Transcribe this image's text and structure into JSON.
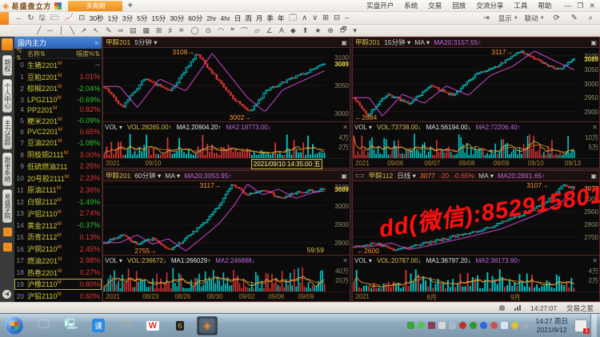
{
  "titlebar": {
    "app_title": "易盛盘立方",
    "window_tab": "多周期",
    "new_tab": "+",
    "menus": [
      "实盘开户",
      "系统",
      "交易",
      "回放",
      "交流分享",
      "工具",
      "帮助"
    ],
    "window_buttons": {
      "minimize": "—",
      "restore": "❐",
      "close": "✕"
    }
  },
  "toolbar": {
    "nav_icons": [
      "←",
      "↻",
      "🖫",
      "🗁",
      "📈",
      "⊡"
    ],
    "periods": [
      "30秒",
      "1分",
      "3分",
      "5分",
      "15分",
      "30分",
      "60分",
      "2hr",
      "4hr",
      "日",
      "周",
      "月",
      "季",
      "年"
    ],
    "extra_icons": [
      "🗔",
      "∧",
      "∨",
      "⊞",
      "⊟",
      "–"
    ],
    "right": {
      "jump": "⇥",
      "display": "显示",
      "linkage": "联动",
      "refresh": "⟳",
      "edit": "✎",
      "find": "⌕"
    }
  },
  "drawbar": {
    "tools": [
      "╱",
      "─",
      "│",
      "╲",
      "↗",
      "↖",
      "✎",
      "═",
      "▤",
      "▦",
      "⊞",
      "♯",
      "✳",
      "◯",
      "⊙",
      "◠",
      "❝",
      "⌒",
      "▱",
      "∠",
      "A",
      "◆",
      "⬆",
      "★",
      "⊕",
      "🗗",
      "▾"
    ]
  },
  "tabstrip": {
    "tabs": [
      "期权",
      "个人中心",
      "主力追踪",
      "跟单系统",
      "易盛学院"
    ],
    "expander": "›",
    "collapse": "◀"
  },
  "sidebar": {
    "header": "国内主力",
    "header_arrow": "»",
    "columns": [
      "号⇅",
      "名称⇅",
      "幅度%⇅"
    ],
    "selected_index": 19,
    "rows": [
      {
        "no": "0",
        "name": "生猪2201",
        "m": true,
        "chg": "--",
        "dir": "flat"
      },
      {
        "no": "1",
        "name": "豆粕2201",
        "m": true,
        "chg": "1.01%",
        "dir": "up"
      },
      {
        "no": "2",
        "name": "棕榈2201",
        "m": true,
        "chg": "-2.04%",
        "dir": "down"
      },
      {
        "no": "3",
        "name": "LPG2110",
        "m": true,
        "chg": "-0.69%",
        "dir": "down"
      },
      {
        "no": "4",
        "name": "PP2201",
        "m": true,
        "chg": "0.82%",
        "dir": "up"
      },
      {
        "no": "5",
        "name": "粳米2201",
        "m": true,
        "chg": "-0.09%",
        "dir": "down"
      },
      {
        "no": "6",
        "name": "PVC2201",
        "m": true,
        "chg": "0.65%",
        "dir": "up"
      },
      {
        "no": "7",
        "name": "豆油2201",
        "m": true,
        "chg": "-1.08%",
        "dir": "down"
      },
      {
        "no": "8",
        "name": "阴极铜2111",
        "m": true,
        "chg": "3.00%",
        "dir": "up"
      },
      {
        "no": "9",
        "name": "低硫燃油211",
        "m": false,
        "chg": "2.25%",
        "dir": "up"
      },
      {
        "no": "10",
        "name": "20号胶2111",
        "m": true,
        "chg": "2.23%",
        "dir": "up"
      },
      {
        "no": "11",
        "name": "原油2111",
        "m": true,
        "chg": "2.36%",
        "dir": "up"
      },
      {
        "no": "12",
        "name": "白银2112",
        "m": true,
        "chg": "-1.49%",
        "dir": "down"
      },
      {
        "no": "13",
        "name": "沪铝2110",
        "m": true,
        "chg": "2.74%",
        "dir": "up"
      },
      {
        "no": "14",
        "name": "黄金2112",
        "m": true,
        "chg": "-0.37%",
        "dir": "down"
      },
      {
        "no": "15",
        "name": "沥青2112",
        "m": true,
        "chg": "0.13%",
        "dir": "up"
      },
      {
        "no": "16",
        "name": "沪铜2110",
        "m": true,
        "chg": "2.45%",
        "dir": "up"
      },
      {
        "no": "17",
        "name": "燃油2201",
        "m": true,
        "chg": "2.98%",
        "dir": "up"
      },
      {
        "no": "18",
        "name": "热卷2201",
        "m": true,
        "chg": "0.27%",
        "dir": "up"
      },
      {
        "no": "19",
        "name": "沪橡2110",
        "m": true,
        "chg": "0.80%",
        "dir": "up"
      },
      {
        "no": "20",
        "name": "沪铅2110",
        "m": true,
        "chg": "0.60%",
        "dir": "up"
      }
    ]
  },
  "chart_data": [
    {
      "type": "candlestick",
      "title": "甲醇201",
      "period": "5分钟",
      "header": [
        {
          "t": "甲醇201",
          "c": "#d4b84a"
        },
        {
          "t": "5分钟 ▾",
          "c": "#cfcfcf"
        }
      ],
      "price_range": [
        2985,
        3118
      ],
      "last": 3089,
      "n": 95,
      "seed": 7,
      "keyframes": [
        [
          0,
          3048
        ],
        [
          0.08,
          3010
        ],
        [
          0.18,
          3062
        ],
        [
          0.3,
          3040
        ],
        [
          0.42,
          3108
        ],
        [
          0.5,
          3068
        ],
        [
          0.58,
          3028
        ],
        [
          0.66,
          3002
        ],
        [
          0.74,
          3042
        ],
        [
          0.85,
          3062
        ],
        [
          1,
          3089
        ]
      ],
      "labels": [
        {
          "v": 3100
        },
        {
          "v": 3089,
          "hl": "#e8d44a"
        },
        {
          "v": 3050
        },
        {
          "v": 3000
        }
      ],
      "annotations": [
        {
          "t": "3108→",
          "x": 0.41,
          "v": 3108,
          "above": true
        },
        {
          "t": "3002→",
          "x": 0.665,
          "v": 3002
        }
      ],
      "countdown": null,
      "vol_readout": [
        {
          "t": "VOL ▾",
          "c": "#cfcfcf"
        },
        {
          "t": "VOL:28265.00↑",
          "c": "#d8c050"
        },
        {
          "t": "MA1:20904.20↑",
          "c": "#e8e8e8"
        },
        {
          "t": "MA2:18773.00↓",
          "c": "#c468e0"
        }
      ],
      "vol_labels": [
        "4万",
        "2万"
      ],
      "x_labels": [
        {
          "t": "2021",
          "x": 0.01
        },
        {
          "t": "09/10",
          "x": 0.17
        },
        {
          "t": "2021/09/10 14:35:00 五",
          "x": 0.6,
          "hl": true
        }
      ]
    },
    {
      "type": "candlestick",
      "title": "甲醇201",
      "period": "15分钟",
      "header": [
        {
          "t": "甲醇201",
          "c": "#d4b84a"
        },
        {
          "t": "15分钟 ▾",
          "c": "#cfcfcf"
        },
        {
          "t": "MA ▾",
          "c": "#cfcfcf"
        },
        {
          "t": "MA20:3157.55↑",
          "c": "#c468e0"
        }
      ],
      "price_range": [
        2865,
        3128
      ],
      "last": 3089,
      "n": 110,
      "seed": 21,
      "keyframes": [
        [
          0,
          2950
        ],
        [
          0.06,
          2884
        ],
        [
          0.15,
          2962
        ],
        [
          0.25,
          2930
        ],
        [
          0.35,
          2992
        ],
        [
          0.45,
          2958
        ],
        [
          0.55,
          3030
        ],
        [
          0.65,
          3062
        ],
        [
          0.75,
          3117
        ],
        [
          0.85,
          3078
        ],
        [
          0.93,
          3050
        ],
        [
          1,
          3089
        ]
      ],
      "labels": [
        {
          "v": 3100
        },
        {
          "v": 3089,
          "hl": "#e8d44a"
        },
        {
          "v": 3050
        },
        {
          "v": 3000
        },
        {
          "v": 2950
        },
        {
          "v": 2900
        }
      ],
      "annotations": [
        {
          "t": "3117→",
          "x": 0.72,
          "v": 3117,
          "above": true
        },
        {
          "t": "←2884",
          "x": 0.01,
          "v": 2884,
          "left": true
        }
      ],
      "countdown": null,
      "vol_readout": [
        {
          "t": "VOL ▾",
          "c": "#cfcfcf"
        },
        {
          "t": "VOL:73738.00↓",
          "c": "#d8c050"
        },
        {
          "t": "MA1:56194.00↓",
          "c": "#e8e8e8"
        },
        {
          "t": "MA2:72206.40↑",
          "c": "#c468e0"
        }
      ],
      "vol_labels": [
        "10万",
        "5万"
      ],
      "x_labels": [
        {
          "t": "2021",
          "x": 0.01
        },
        {
          "t": "09/06",
          "x": 0.14
        },
        {
          "t": "09/07",
          "x": 0.29
        },
        {
          "t": "09/08",
          "x": 0.43
        },
        {
          "t": "09/09",
          "x": 0.57
        },
        {
          "t": "09/10",
          "x": 0.71
        },
        {
          "t": "09/13",
          "x": 0.86
        }
      ]
    },
    {
      "type": "candlestick",
      "title": "甲醇201",
      "period": "60分钟",
      "header": [
        {
          "t": "甲醇201",
          "c": "#d4b84a"
        },
        {
          "t": "60分钟 ▾",
          "c": "#cfcfcf"
        },
        {
          "t": "MA ▾",
          "c": "#cfcfcf"
        },
        {
          "t": "MA20:3053.95↑",
          "c": "#c468e0"
        }
      ],
      "price_range": [
        2735,
        3132
      ],
      "last": 3089,
      "n": 110,
      "seed": 33,
      "keyframes": [
        [
          0,
          2800
        ],
        [
          0.08,
          2842
        ],
        [
          0.15,
          2792
        ],
        [
          0.22,
          2822
        ],
        [
          0.3,
          2755
        ],
        [
          0.38,
          2832
        ],
        [
          0.45,
          2902
        ],
        [
          0.52,
          3002
        ],
        [
          0.58,
          3117
        ],
        [
          0.65,
          3058
        ],
        [
          0.72,
          3090
        ],
        [
          0.8,
          3040
        ],
        [
          0.88,
          3072
        ],
        [
          1,
          3089
        ]
      ],
      "labels": [
        {
          "v": 3100
        },
        {
          "v": 3089,
          "hl": "#e8d44a"
        },
        {
          "v": 3000
        },
        {
          "v": 2900
        },
        {
          "v": 2800
        }
      ],
      "annotations": [
        {
          "t": "3117→",
          "x": 0.53,
          "v": 3117,
          "above": true
        },
        {
          "t": "2755→",
          "x": 0.24,
          "v": 2755
        }
      ],
      "countdown": "59:59",
      "vol_readout": [
        {
          "t": "VOL ▾",
          "c": "#cfcfcf"
        },
        {
          "t": "VOL:236672↓",
          "c": "#d8c050"
        },
        {
          "t": "MA1:266029↑",
          "c": "#e8e8e8"
        },
        {
          "t": "MA2:246888↓",
          "c": "#c468e0"
        }
      ],
      "vol_labels": [
        "40万",
        "20万"
      ],
      "x_labels": [
        {
          "t": "2021",
          "x": 0.01
        },
        {
          "t": "08/23",
          "x": 0.16
        },
        {
          "t": "08/26",
          "x": 0.29
        },
        {
          "t": "08/30",
          "x": 0.42
        },
        {
          "t": "09/02",
          "x": 0.55
        },
        {
          "t": "09/06",
          "x": 0.67
        },
        {
          "t": "09/09",
          "x": 0.79
        }
      ]
    },
    {
      "type": "candlestick",
      "title": "甲醇112",
      "period": "日线",
      "link_icon": "⊂⊃",
      "header": [
        {
          "t": "甲醇112",
          "c": "#d4b84a"
        },
        {
          "t": "日线 ▾",
          "c": "#cfcfcf"
        },
        {
          "t": "3077",
          "c": "#ff7a3c"
        },
        {
          "t": "-20",
          "c": "#e85340"
        },
        {
          "t": "-0.65%",
          "c": "#e85340"
        },
        {
          "t": "MA ▾",
          "c": "#cfcfcf"
        },
        {
          "t": "MA20:2891.65↑",
          "c": "#c468e0"
        }
      ],
      "price_range": [
        2560,
        3135
      ],
      "last": 3077,
      "n": 90,
      "seed": 55,
      "keyframes": [
        [
          0,
          2622
        ],
        [
          0.1,
          2652
        ],
        [
          0.18,
          2600
        ],
        [
          0.3,
          2642
        ],
        [
          0.45,
          2700
        ],
        [
          0.6,
          2762
        ],
        [
          0.7,
          2832
        ],
        [
          0.8,
          2902
        ],
        [
          0.88,
          2982
        ],
        [
          0.95,
          3107
        ],
        [
          1,
          3077
        ]
      ],
      "labels": [
        {
          "v": 3077,
          "hl": "#ff7a3c"
        },
        {
          "v": 3000
        },
        {
          "v": 2900
        },
        {
          "v": 2800
        },
        {
          "v": 2700
        }
      ],
      "annotations": [
        {
          "t": "3107→",
          "x": 0.88,
          "v": 3107,
          "above": true
        },
        {
          "t": "←2600",
          "x": 0.02,
          "v": 2600,
          "left": true
        }
      ],
      "countdown": null,
      "vol_readout": [
        {
          "t": "VOL ▾",
          "c": "#cfcfcf"
        },
        {
          "t": "VOL:20787.00↓",
          "c": "#d8c050"
        },
        {
          "t": "MA1:36797.20↓",
          "c": "#e8e8e8"
        },
        {
          "t": "MA2:38173.90↑",
          "c": "#c468e0"
        }
      ],
      "vol_labels": [
        "4万",
        "2万"
      ],
      "x_labels": [
        {
          "t": "2021",
          "x": 0.01
        },
        {
          "t": "8月",
          "x": 0.3
        },
        {
          "t": "9月",
          "x": 0.64
        }
      ]
    }
  ],
  "watermark": "dd(微信):852915801",
  "statusbar": {
    "time": "14:27:07",
    "brand": "交易之星"
  },
  "taskbar": {
    "apps": [
      "calculator-icon",
      "system-window-icon",
      "ke-app-icon",
      "folder-icon",
      "wps-icon",
      "wh6-icon",
      "esunny-icon"
    ],
    "app_glyphs": {
      "ke-app-icon": "课",
      "wps-icon": "W"
    },
    "clock_line1": "14:27 周日",
    "clock_line2": "2021/9/12"
  },
  "colors": {
    "up_candle": "#00c9c9",
    "down_candle": "#d63333",
    "ma_line": "#cc44cc",
    "vol_ma1": "#d8c050",
    "vol_ma2": "#e07820",
    "grid": "#3a1b1b",
    "annotation": "#ff9332",
    "accent_orange": "#ee7d12",
    "sidebar_blue": "#2a62b4",
    "watermark_red": "#f61212"
  }
}
